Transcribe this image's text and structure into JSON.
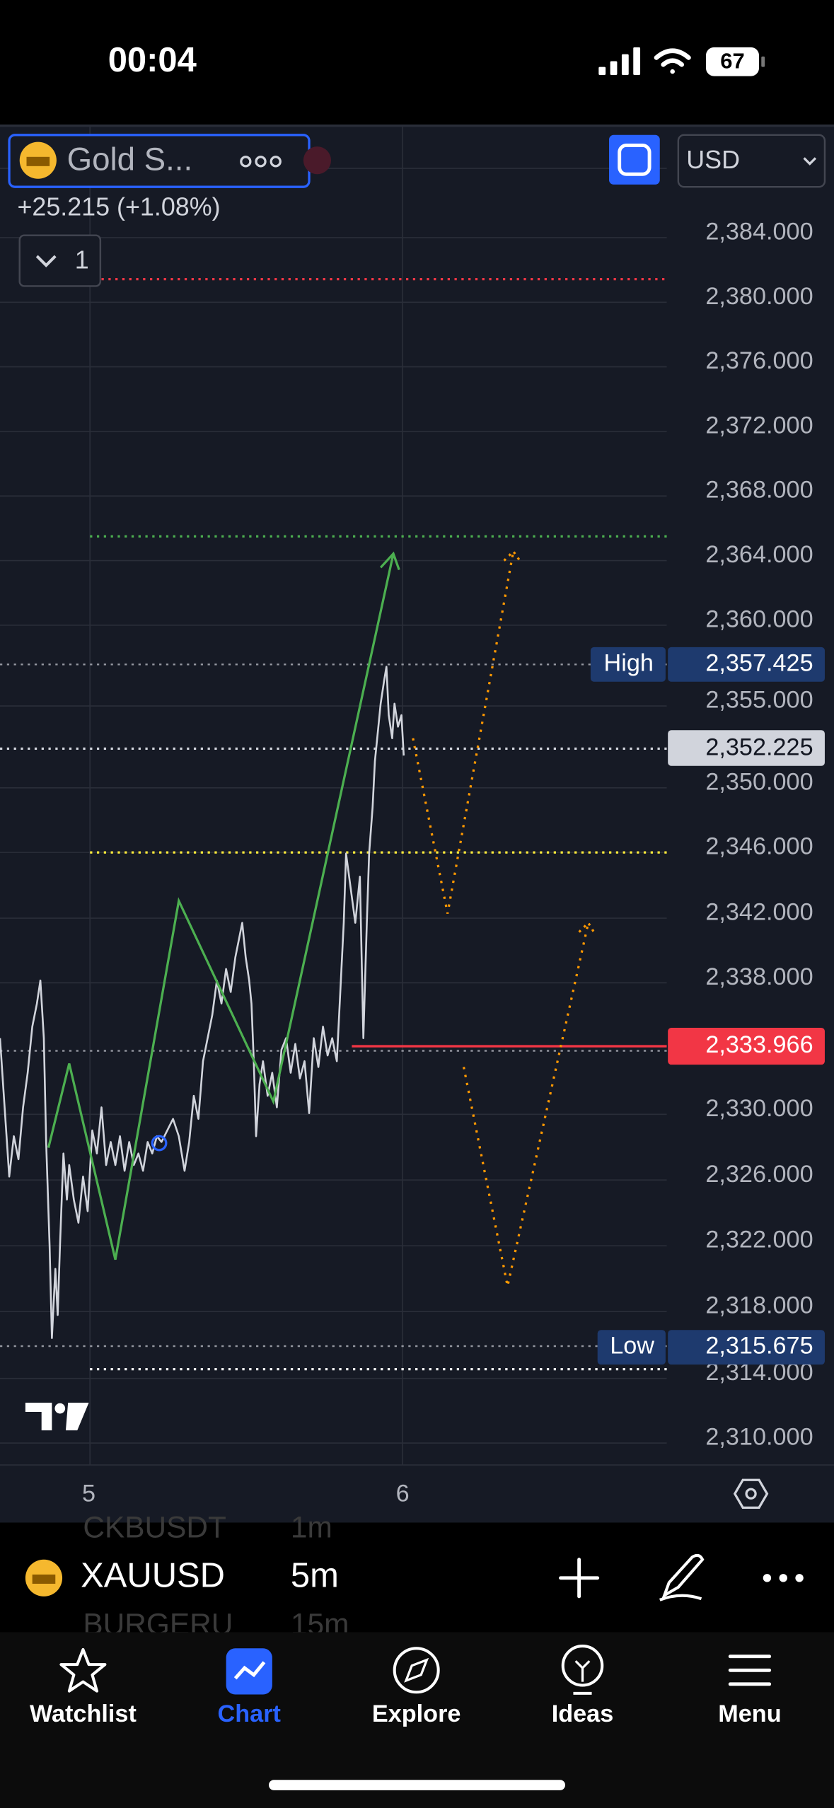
{
  "status_bar": {
    "time": "00:04",
    "battery": "67"
  },
  "chart_header": {
    "symbol": "Gold S...",
    "change": "+25.215 (+1.08%)",
    "indicator_count": "1",
    "currency": "USD"
  },
  "price_axis": {
    "labels": [
      {
        "text": "2,384.000",
        "at": 202
      },
      {
        "text": "2,380.000",
        "at": 258
      },
      {
        "text": "2,376.000",
        "at": 314
      },
      {
        "text": "2,372.000",
        "at": 370
      },
      {
        "text": "2,368.000",
        "at": 426
      },
      {
        "text": "2,364.000",
        "at": 482
      },
      {
        "text": "2,360.000",
        "at": 538
      },
      {
        "text": "2,355.000",
        "at": 608
      },
      {
        "text": "2,350.000",
        "at": 679
      },
      {
        "text": "2,346.000",
        "at": 735
      },
      {
        "text": "2,342.000",
        "at": 792
      },
      {
        "text": "2,338.000",
        "at": 848
      },
      {
        "text": "2,330.000",
        "at": 962
      },
      {
        "text": "2,326.000",
        "at": 1019
      },
      {
        "text": "2,322.000",
        "at": 1076
      },
      {
        "text": "2,318.000",
        "at": 1133
      },
      {
        "text": "2,314.000",
        "at": 1191
      },
      {
        "text": "2,310.000",
        "at": 1247
      }
    ]
  },
  "markers": {
    "high_label": "High",
    "high_value": "2,357.425",
    "current_value": "2,352.225",
    "alert_value": "2,333.966",
    "low_label": "Low",
    "low_value": "2,315.675"
  },
  "time_axis": [
    "5",
    "6"
  ],
  "toolbar": {
    "prev_symbol": "CKBUSDT",
    "prev_interval": "1m",
    "symbol": "XAUUSD",
    "interval": "5m",
    "next_symbol": "BURGERU",
    "next_interval": "15m"
  },
  "tabs": [
    "Watchlist",
    "Chart",
    "Explore",
    "Ideas",
    "Menu"
  ]
}
